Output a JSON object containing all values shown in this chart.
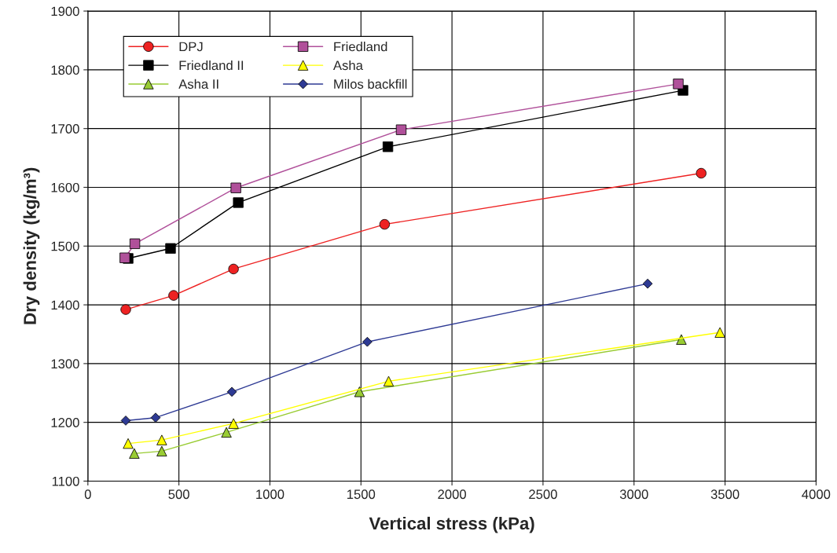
{
  "chart_data": {
    "type": "line",
    "xlabel": "Vertical stress (kPa)",
    "ylabel": "Dry density (kg/m³)",
    "xlim": [
      0,
      4000
    ],
    "xticks": [
      0,
      500,
      1000,
      1500,
      2000,
      2500,
      3000,
      3500,
      4000
    ],
    "ylim": [
      1100,
      1900
    ],
    "yticks": [
      1100,
      1200,
      1300,
      1400,
      1500,
      1600,
      1700,
      1800,
      1900
    ],
    "grid": true,
    "legend": "top left",
    "series": [
      {
        "name": "DPJ",
        "color": "#ee2222",
        "marker": "circle",
        "x": [
          208,
          471,
          800,
          1630,
          3369
        ],
        "values": [
          1392,
          1416,
          1461,
          1537,
          1624
        ]
      },
      {
        "name": "Friedland",
        "color": "#b0509a",
        "marker": "square",
        "x": [
          203,
          258,
          813,
          1721,
          3243
        ],
        "values": [
          1480,
          1504,
          1599,
          1698,
          1776
        ]
      },
      {
        "name": "Friedland II",
        "color": "#000000",
        "marker": "square",
        "x": [
          221,
          454,
          826,
          1648,
          3269
        ],
        "values": [
          1479,
          1496,
          1574,
          1669,
          1765
        ]
      },
      {
        "name": "Asha",
        "color": "#ffff00",
        "marker": "triangle",
        "x": [
          221,
          406,
          800,
          1652,
          3472
        ],
        "values": [
          1164,
          1170,
          1198,
          1270,
          1353
        ]
      },
      {
        "name": "Asha II",
        "color": "#99cc33",
        "marker": "triangle",
        "x": [
          255,
          406,
          761,
          1492,
          3260
        ],
        "values": [
          1147,
          1151,
          1183,
          1252,
          1341
        ]
      },
      {
        "name": "Milos backfill",
        "color": "#2e3a94",
        "marker": "diamond",
        "x": [
          208,
          372,
          791,
          1535,
          3075
        ],
        "values": [
          1203,
          1208,
          1252,
          1337,
          1436
        ]
      }
    ]
  }
}
